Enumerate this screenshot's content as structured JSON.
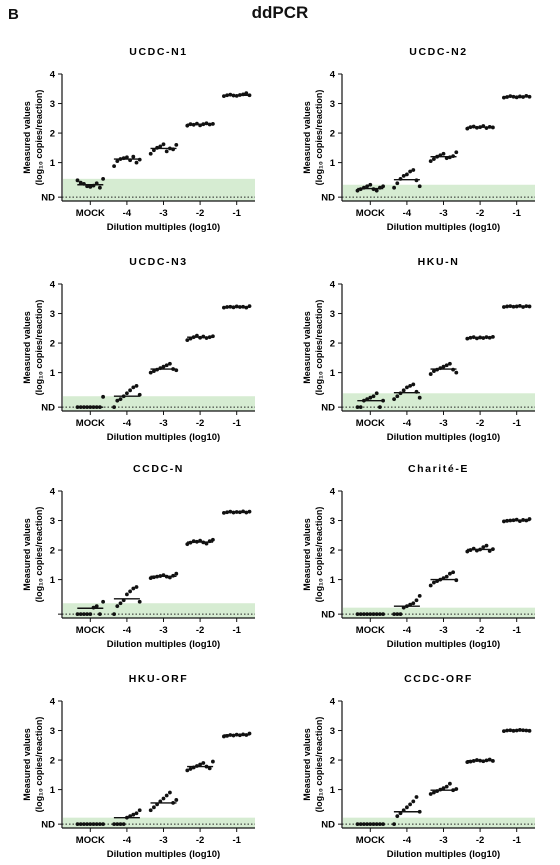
{
  "header": {
    "panel_label": "B",
    "title": "ddPCR"
  },
  "chart_data": [
    {
      "type": "scatter",
      "title": "UCDC-N1",
      "xlabel": "Dilution multiples (log10)",
      "ylabel_line1": "Measured values",
      "ylabel_line2": "(log₁₀ copies/reaction)",
      "categories": [
        "MOCK",
        "-4",
        "-3",
        "-2",
        "-1"
      ],
      "yticks": [
        "ND",
        "1",
        "2",
        "3",
        "4"
      ],
      "ylim": [
        -0.3,
        4
      ],
      "nd_level": 0,
      "shaded_max": 0.45,
      "points": [
        [
          0.4,
          0.32,
          0.28,
          0.2,
          0.18,
          0.22,
          0.3,
          0.15,
          0.45
        ],
        [
          0.88,
          1.05,
          1.12,
          1.15,
          1.18,
          1.08,
          1.2,
          1.0,
          1.1
        ],
        [
          1.3,
          1.42,
          1.5,
          1.55,
          1.62,
          1.38,
          1.48,
          1.45,
          1.6
        ],
        [
          2.25,
          2.3,
          2.28,
          2.32,
          2.26,
          2.3,
          2.33,
          2.29,
          2.31
        ],
        [
          3.25,
          3.28,
          3.3,
          3.27,
          3.26,
          3.29,
          3.31,
          3.35,
          3.28
        ]
      ],
      "means": [
        0.25,
        1.12,
        1.48,
        2.3,
        3.28
      ]
    },
    {
      "type": "scatter",
      "title": "UCDC-N2",
      "xlabel": "Dilution multiples (log10)",
      "ylabel_line1": "Measured values",
      "ylabel_line2": "(log₁₀ copies/reaction)",
      "categories": [
        "MOCK",
        "-4",
        "-3",
        "-2",
        "-1"
      ],
      "yticks": [
        "ND",
        "1",
        "2",
        "3",
        "4"
      ],
      "ylim": [
        -0.3,
        4
      ],
      "nd_level": 0,
      "shaded_max": 0.25,
      "points": [
        [
          0.05,
          0.1,
          0.15,
          0.2,
          0.25,
          0.1,
          0.05,
          0.15,
          0.2
        ],
        [
          0.15,
          0.3,
          0.45,
          0.55,
          0.6,
          0.7,
          0.75,
          0.4,
          0.2
        ],
        [
          1.05,
          1.12,
          1.2,
          1.25,
          1.3,
          1.15,
          1.18,
          1.22,
          1.35
        ],
        [
          2.15,
          2.2,
          2.22,
          2.18,
          2.2,
          2.24,
          2.17,
          2.21,
          2.19
        ],
        [
          3.2,
          3.22,
          3.25,
          3.23,
          3.21,
          3.24,
          3.22,
          3.26,
          3.23
        ]
      ],
      "means": [
        0.12,
        0.42,
        1.2,
        2.2,
        3.23
      ]
    },
    {
      "type": "scatter",
      "title": "UCDC-N3",
      "xlabel": "Dilution multiples (log10)",
      "ylabel_line1": "Measured values",
      "ylabel_line2": "(log₁₀ copies/reaction)",
      "categories": [
        "MOCK",
        "-4",
        "-3",
        "-2",
        "-1"
      ],
      "yticks": [
        "ND",
        "1",
        "2",
        "3",
        "4"
      ],
      "ylim": [
        -0.3,
        4
      ],
      "nd_level": 0,
      "shaded_max": 0.2,
      "points": [
        [
          0,
          0,
          0,
          0,
          0,
          0,
          0,
          0,
          0.18
        ],
        [
          0,
          0.05,
          0.1,
          0.2,
          0.3,
          0.4,
          0.5,
          0.55,
          0.25
        ],
        [
          1.0,
          1.05,
          1.1,
          1.15,
          1.2,
          1.25,
          1.3,
          1.12,
          1.08
        ],
        [
          2.1,
          2.15,
          2.2,
          2.25,
          2.18,
          2.22,
          2.17,
          2.2,
          2.23
        ],
        [
          3.2,
          3.22,
          3.23,
          3.21,
          3.24,
          3.22,
          3.23,
          3.2,
          3.25
        ]
      ],
      "means": [
        0,
        0.2,
        1.12,
        2.2,
        3.22
      ]
    },
    {
      "type": "scatter",
      "title": "HKU-N",
      "xlabel": "Dilution multiples (log10)",
      "ylabel_line1": "Measured values",
      "ylabel_line2": "(log₁₀ copies/reaction)",
      "categories": [
        "MOCK",
        "-4",
        "-3",
        "-2",
        "-1"
      ],
      "yticks": [
        "ND",
        "1",
        "2",
        "3",
        "4"
      ],
      "ylim": [
        -0.3,
        4
      ],
      "nd_level": 0,
      "shaded_max": 0.3,
      "points": [
        [
          0,
          0,
          0.05,
          0.1,
          0.15,
          0.2,
          0.3,
          0,
          0.05
        ],
        [
          0.1,
          0.2,
          0.3,
          0.4,
          0.5,
          0.55,
          0.6,
          0.35,
          0.15
        ],
        [
          0.95,
          1.05,
          1.1,
          1.15,
          1.2,
          1.25,
          1.3,
          1.1,
          1.0
        ],
        [
          2.15,
          2.18,
          2.2,
          2.16,
          2.19,
          2.17,
          2.2,
          2.18,
          2.21
        ],
        [
          3.22,
          3.24,
          3.25,
          3.23,
          3.24,
          3.26,
          3.22,
          3.25,
          3.24
        ]
      ],
      "means": [
        0.05,
        0.32,
        1.12,
        2.18,
        3.24
      ]
    },
    {
      "type": "scatter",
      "title": "CCDC-N",
      "xlabel": "Dilution multiples (log10)",
      "ylabel_line1": "Measured values",
      "ylabel_line2": "(log₁₀ copies/reaction)",
      "categories": [
        "MOCK",
        "-4",
        "-3",
        "-2",
        "-1"
      ],
      "yticks": [
        "",
        "1",
        "2",
        "3",
        "4"
      ],
      "ylim": [
        -0.3,
        4
      ],
      "nd_level": 0,
      "shaded_max": 0.2,
      "points": [
        [
          0,
          0,
          0,
          0,
          0,
          0.05,
          0.1,
          0,
          0.25
        ],
        [
          0,
          0.1,
          0.2,
          0.3,
          0.5,
          0.6,
          0.7,
          0.75,
          0.25
        ],
        [
          1.05,
          1.08,
          1.1,
          1.12,
          1.15,
          1.1,
          1.07,
          1.13,
          1.2
        ],
        [
          2.2,
          2.25,
          2.3,
          2.28,
          2.32,
          2.26,
          2.22,
          2.3,
          2.35
        ],
        [
          3.26,
          3.28,
          3.3,
          3.27,
          3.29,
          3.28,
          3.31,
          3.27,
          3.3
        ]
      ],
      "means": [
        0.03,
        0.35,
        1.11,
        2.27,
        3.28
      ]
    },
    {
      "type": "scatter",
      "title": "Charité-E",
      "xlabel": "Dilution multiples (log10)",
      "ylabel_line1": "Measured values",
      "ylabel_line2": "(log₁₀ copies/reaction)",
      "categories": [
        "MOCK",
        "-4",
        "-3",
        "-2",
        "-1"
      ],
      "yticks": [
        "ND",
        "1",
        "2",
        "3",
        "4"
      ],
      "ylim": [
        -0.3,
        4
      ],
      "nd_level": 0,
      "shaded_max": 0.05,
      "points": [
        [
          0,
          0,
          0,
          0,
          0,
          0,
          0,
          0,
          0
        ],
        [
          0,
          0,
          0,
          0.05,
          0.1,
          0.15,
          0.2,
          0.3,
          0.45
        ],
        [
          0.8,
          0.9,
          0.95,
          1.0,
          1.05,
          1.1,
          1.2,
          1.25,
          0.98
        ],
        [
          1.95,
          2.0,
          2.05,
          1.98,
          2.02,
          2.1,
          2.15,
          1.97,
          2.03
        ],
        [
          2.97,
          2.99,
          3.0,
          3.01,
          3.03,
          2.98,
          3.02,
          3.0,
          3.05
        ]
      ],
      "means": [
        0,
        0.1,
        1.0,
        2.02,
        3.0
      ]
    },
    {
      "type": "scatter",
      "title": "HKU-ORF",
      "xlabel": "Dilution multiples (log10)",
      "ylabel_line1": "Measured values",
      "ylabel_line2": "(log₁₀ copies/reaction)",
      "categories": [
        "MOCK",
        "-4",
        "-3",
        "-2",
        "-1"
      ],
      "yticks": [
        "ND",
        "1",
        "2",
        "3",
        "4"
      ],
      "ylim": [
        -0.3,
        4
      ],
      "nd_level": 0,
      "shaded_max": 0.05,
      "points": [
        [
          0,
          0,
          0,
          0,
          0,
          0,
          0,
          0,
          0
        ],
        [
          0,
          0,
          0,
          0,
          0.05,
          0.1,
          0.15,
          0.2,
          0.3
        ],
        [
          0.3,
          0.4,
          0.5,
          0.6,
          0.7,
          0.8,
          0.9,
          0.55,
          0.65
        ],
        [
          1.65,
          1.7,
          1.75,
          1.8,
          1.85,
          1.9,
          1.78,
          1.72,
          1.95
        ],
        [
          2.8,
          2.82,
          2.85,
          2.83,
          2.86,
          2.84,
          2.87,
          2.85,
          2.9
        ]
      ],
      "means": [
        0,
        0.05,
        0.55,
        1.78,
        2.85
      ]
    },
    {
      "type": "scatter",
      "title": "CCDC-ORF",
      "xlabel": "Dilution multiples (log10)",
      "ylabel_line1": "Measured values",
      "ylabel_line2": "(log₁₀ copies/reaction)",
      "categories": [
        "MOCK",
        "-4",
        "-3",
        "-2",
        "-1"
      ],
      "yticks": [
        "ND",
        "1",
        "2",
        "3",
        "4"
      ],
      "ylim": [
        -0.3,
        4
      ],
      "nd_level": 0,
      "shaded_max": 0.05,
      "points": [
        [
          0,
          0,
          0,
          0,
          0,
          0,
          0,
          0,
          0
        ],
        [
          0,
          0.1,
          0.2,
          0.3,
          0.4,
          0.5,
          0.6,
          0.75,
          0.25
        ],
        [
          0.85,
          0.9,
          0.95,
          1.0,
          1.05,
          1.1,
          1.2,
          0.98,
          1.02
        ],
        [
          1.93,
          1.95,
          1.97,
          2.0,
          1.98,
          1.96,
          1.99,
          2.02,
          1.97
        ],
        [
          2.98,
          3.0,
          3.01,
          2.99,
          3.0,
          3.02,
          3.01,
          3.0,
          2.99
        ]
      ],
      "means": [
        0,
        0.25,
        0.98,
        1.98,
        3.0
      ]
    }
  ]
}
